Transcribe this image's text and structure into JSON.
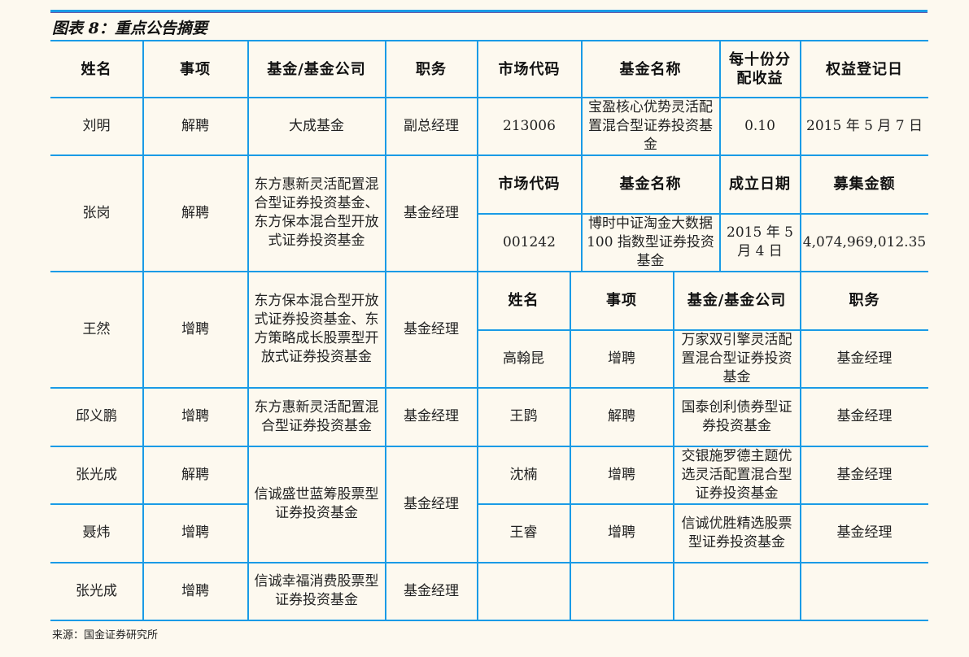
{
  "title": "图表 8：重点公告摘要",
  "source": "来源：国金证券研究所",
  "left": {
    "headers": [
      "姓名",
      "事项",
      "基金/基金公司",
      "职务"
    ],
    "rows": [
      {
        "name": "刘明",
        "action": "解聘",
        "fund": "大成基金",
        "position": "副总经理"
      },
      {
        "name": "张岗",
        "action": "解聘",
        "fund": "东方惠新灵活配置混合型证券投资基金、东方保本混合型开放式证券投资基金",
        "position": "基金经理"
      },
      {
        "name": "王然",
        "action": "增聘",
        "fund": "东方保本混合型开放式证券投资基金、东方策略成长股票型开放式证券投资基金",
        "position": "基金经理"
      },
      {
        "name": "邱义鹏",
        "action": "增聘",
        "fund": "东方惠新灵活配置混合型证券投资基金",
        "position": "基金经理"
      },
      {
        "name": "张光成",
        "action": "解聘",
        "fund": "信诚盛世蓝筹股票型证券投资基金",
        "position": "基金经理"
      },
      {
        "name": "聂炜",
        "action": "增聘"
      },
      {
        "name": "张光成",
        "action": "增聘",
        "fund": "信诚幸福消费股票型证券投资基金",
        "position": "基金经理"
      }
    ]
  },
  "right": {
    "dividend": {
      "headers": [
        "市场代码",
        "基金名称",
        "每十份分配收益",
        "权益登记日"
      ],
      "row": [
        "213006",
        "宝盈核心优势灵活配置混合型证券投资基金",
        "0.10",
        "2015 年 5 月 7 日"
      ]
    },
    "new_fund": {
      "headers": [
        "市场代码",
        "基金名称",
        "成立日期",
        "募集金额"
      ],
      "row": [
        "001242",
        "博时中证淘金大数据 100 指数型证券投资基金",
        "2015 年 5 月 4 日",
        "4,074,969,012.35"
      ]
    },
    "managers": {
      "headers": [
        "姓名",
        "事项",
        "基金/基金公司",
        "职务"
      ],
      "rows": [
        [
          "高翰昆",
          "增聘",
          "万家双引擎灵活配置混合型证券投资基金",
          "基金经理"
        ],
        [
          "王鹍",
          "解聘",
          "国泰创利债券型证券投资基金",
          "基金经理"
        ],
        [
          "沈楠",
          "增聘",
          "交银施罗德主题优选灵活配置混合型证券投资基金",
          "基金经理"
        ],
        [
          "王睿",
          "增聘",
          "信诚优胜精选股票型证券投资基金",
          "基金经理"
        ],
        [
          "",
          "",
          "",
          ""
        ]
      ]
    }
  }
}
